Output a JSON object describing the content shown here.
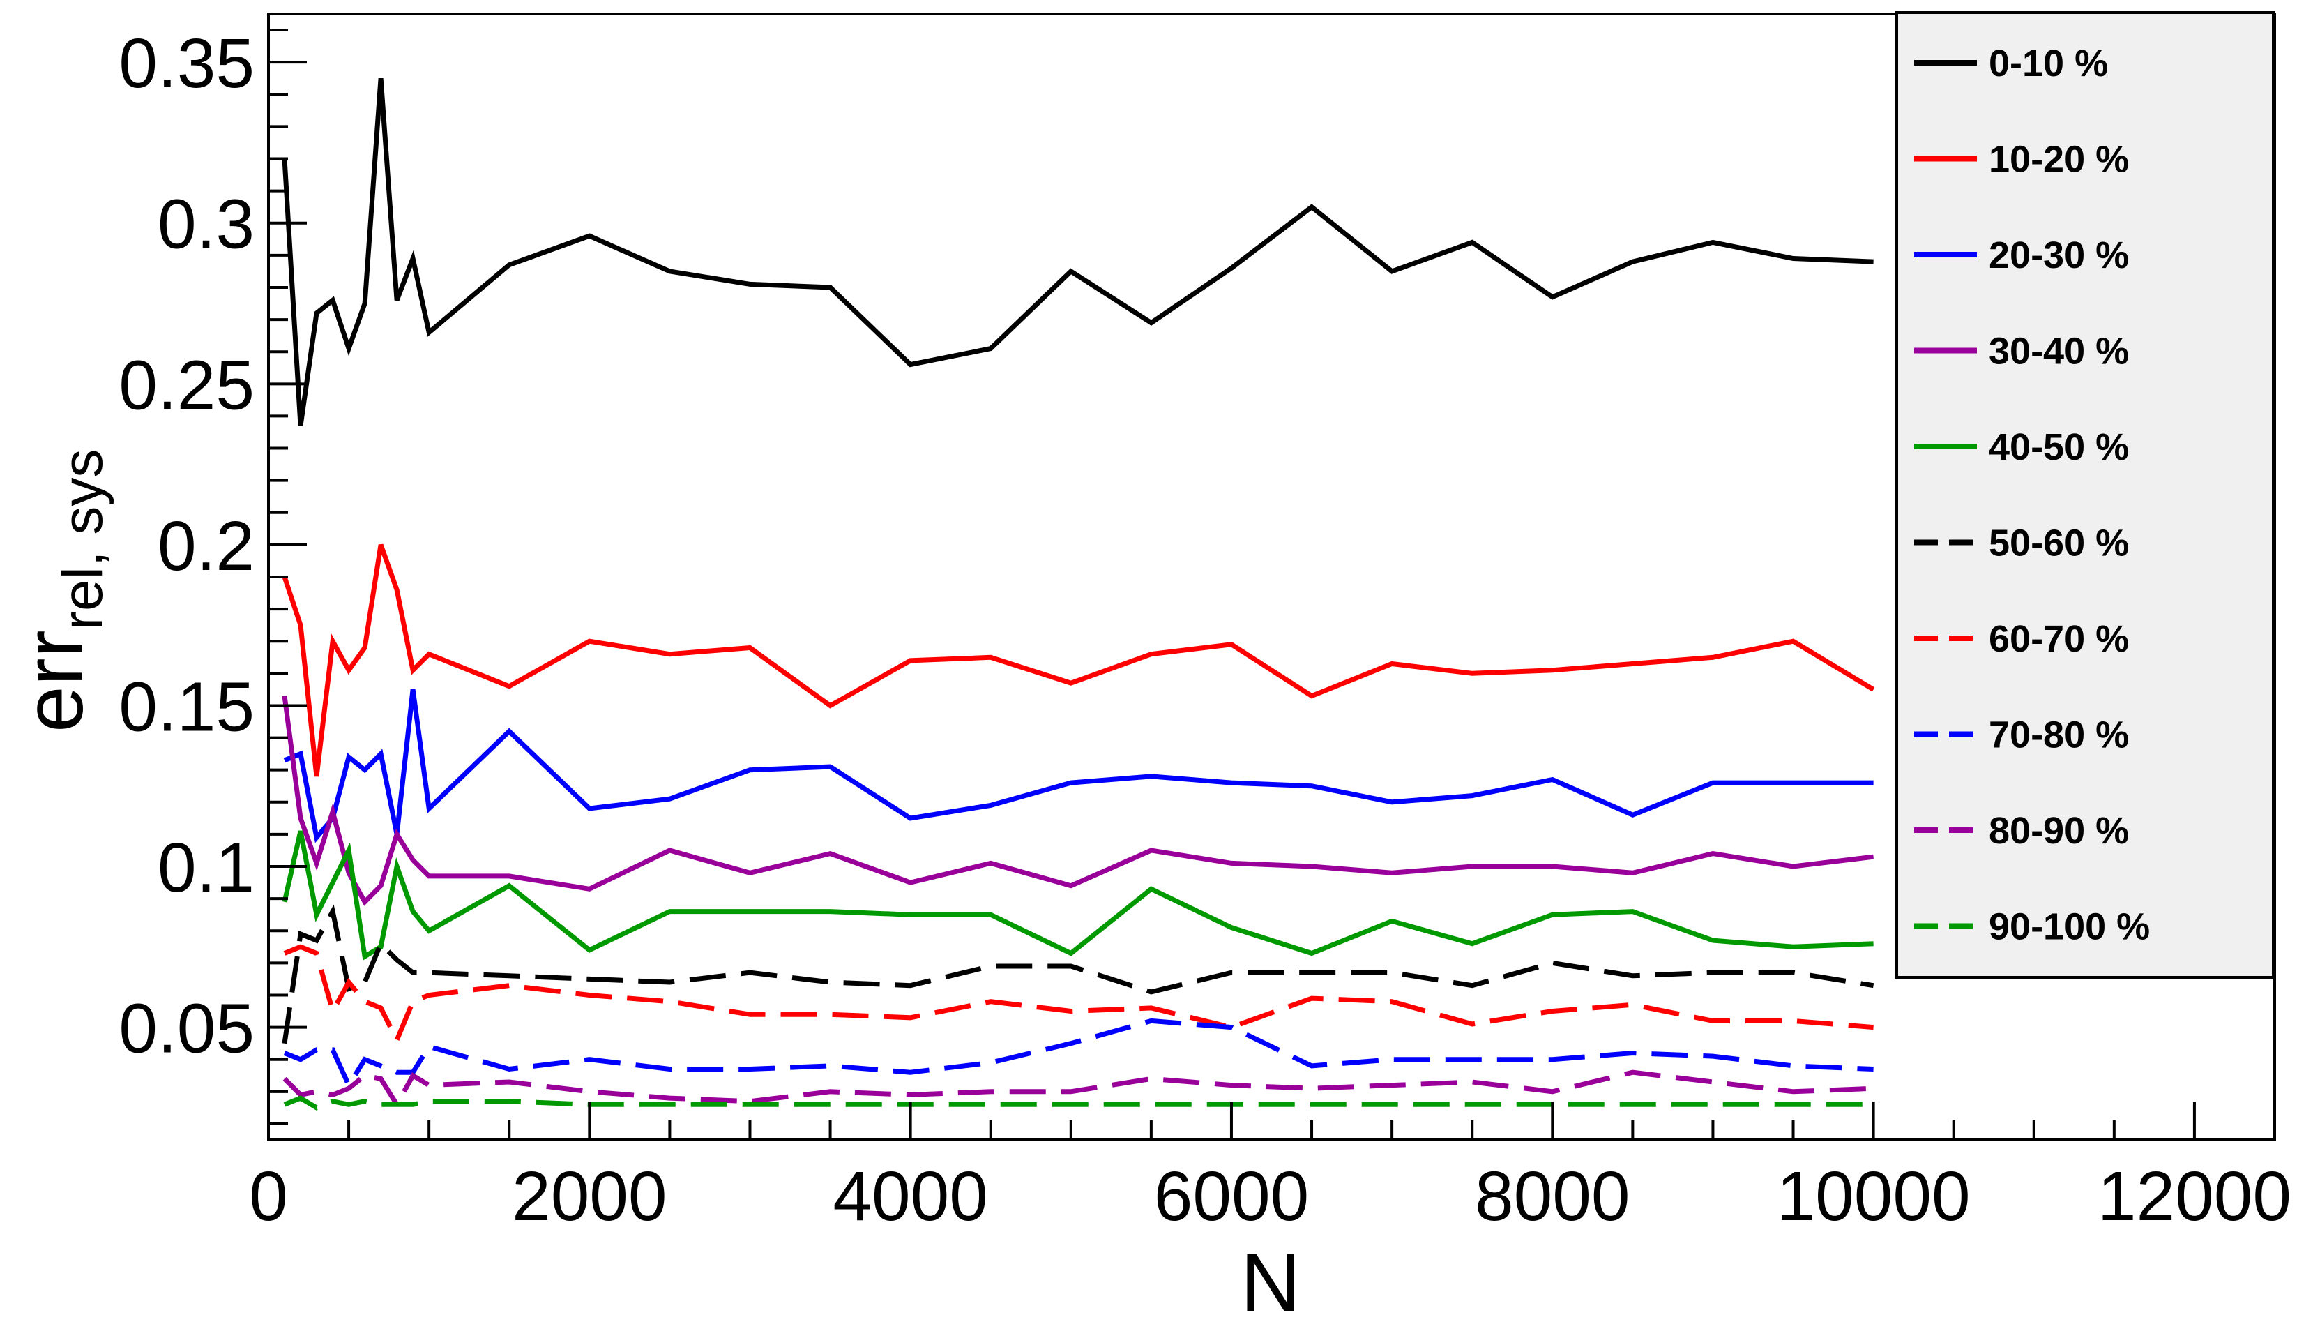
{
  "chart_data": {
    "type": "line",
    "title": "",
    "xlabel": "N",
    "ylabel": {
      "main": "err",
      "sub": "rel, sys"
    },
    "xlim": [
      0,
      12500
    ],
    "ylim": [
      0.015,
      0.365
    ],
    "x_ticks": [
      {
        "value": 0,
        "label": "0"
      },
      {
        "value": 2000,
        "label": "2000"
      },
      {
        "value": 4000,
        "label": "4000"
      },
      {
        "value": 6000,
        "label": "6000"
      },
      {
        "value": 8000,
        "label": "8000"
      },
      {
        "value": 10000,
        "label": "10000"
      },
      {
        "value": 12000,
        "label": "12000"
      }
    ],
    "y_ticks": [
      {
        "value": 0.05,
        "label": "0.05"
      },
      {
        "value": 0.1,
        "label": "0.1"
      },
      {
        "value": 0.15,
        "label": "0.15"
      },
      {
        "value": 0.2,
        "label": "0.2"
      },
      {
        "value": 0.25,
        "label": "0.25"
      },
      {
        "value": 0.3,
        "label": "0.3"
      },
      {
        "value": 0.35,
        "label": "0.35"
      }
    ],
    "grid": false,
    "legend_position": "top-right",
    "series": [
      {
        "name": "0-10 %",
        "color": "#000000",
        "dash": "solid",
        "x": [
          100,
          200,
          300,
          400,
          500,
          600,
          700,
          800,
          900,
          1000,
          1500,
          2000,
          2500,
          3000,
          3500,
          4000,
          4500,
          5000,
          5500,
          6000,
          6500,
          7000,
          7500,
          8000,
          8500,
          9000,
          9500,
          10000
        ],
        "y": [
          0.32,
          0.237,
          0.272,
          0.276,
          0.261,
          0.275,
          0.345,
          0.276,
          0.289,
          0.266,
          0.287,
          0.296,
          0.285,
          0.281,
          0.28,
          0.256,
          0.261,
          0.285,
          0.269,
          0.286,
          0.305,
          0.285,
          0.294,
          0.277,
          0.288,
          0.294,
          0.289,
          0.288
        ]
      },
      {
        "name": "10-20 %",
        "color": "#ff0000",
        "dash": "solid",
        "x": [
          100,
          200,
          300,
          400,
          500,
          600,
          700,
          800,
          900,
          1000,
          1500,
          2000,
          2500,
          3000,
          3500,
          4000,
          4500,
          5000,
          5500,
          6000,
          6500,
          7000,
          7500,
          8000,
          8500,
          9000,
          9500,
          10000
        ],
        "y": [
          0.19,
          0.175,
          0.128,
          0.17,
          0.161,
          0.168,
          0.2,
          0.186,
          0.161,
          0.166,
          0.156,
          0.17,
          0.166,
          0.168,
          0.15,
          0.164,
          0.165,
          0.157,
          0.166,
          0.169,
          0.153,
          0.163,
          0.16,
          0.161,
          0.163,
          0.165,
          0.17,
          0.155
        ]
      },
      {
        "name": "20-30 %",
        "color": "#0000ff",
        "dash": "solid",
        "x": [
          100,
          200,
          300,
          400,
          500,
          600,
          700,
          800,
          900,
          1000,
          1500,
          2000,
          2500,
          3000,
          3500,
          4000,
          4500,
          5000,
          5500,
          6000,
          6500,
          7000,
          7500,
          8000,
          8500,
          9000,
          9500,
          10000
        ],
        "y": [
          0.133,
          0.135,
          0.109,
          0.115,
          0.134,
          0.13,
          0.135,
          0.11,
          0.155,
          0.118,
          0.142,
          0.118,
          0.121,
          0.13,
          0.131,
          0.115,
          0.119,
          0.126,
          0.128,
          0.126,
          0.125,
          0.12,
          0.122,
          0.127,
          0.116,
          0.126,
          0.126,
          0.126
        ]
      },
      {
        "name": "30-40 %",
        "color": "#990099",
        "dash": "solid",
        "x": [
          100,
          200,
          300,
          400,
          500,
          600,
          700,
          800,
          900,
          1000,
          1500,
          2000,
          2500,
          3000,
          3500,
          4000,
          4500,
          5000,
          5500,
          6000,
          6500,
          7000,
          7500,
          8000,
          8500,
          9000,
          9500,
          10000
        ],
        "y": [
          0.153,
          0.115,
          0.101,
          0.117,
          0.098,
          0.089,
          0.094,
          0.11,
          0.102,
          0.097,
          0.097,
          0.093,
          0.105,
          0.098,
          0.104,
          0.095,
          0.101,
          0.094,
          0.105,
          0.101,
          0.1,
          0.098,
          0.1,
          0.1,
          0.098,
          0.104,
          0.1,
          0.103
        ]
      },
      {
        "name": "40-50 %",
        "color": "#009900",
        "dash": "solid",
        "x": [
          100,
          200,
          300,
          400,
          500,
          600,
          700,
          800,
          900,
          1000,
          1500,
          2000,
          2500,
          3000,
          3500,
          4000,
          4500,
          5000,
          5500,
          6000,
          6500,
          7000,
          7500,
          8000,
          8500,
          9000,
          9500,
          10000
        ],
        "y": [
          0.089,
          0.111,
          0.085,
          0.095,
          0.105,
          0.072,
          0.075,
          0.1,
          0.086,
          0.08,
          0.094,
          0.074,
          0.086,
          0.086,
          0.086,
          0.085,
          0.085,
          0.073,
          0.093,
          0.081,
          0.073,
          0.083,
          0.076,
          0.085,
          0.086,
          0.077,
          0.075,
          0.076
        ]
      },
      {
        "name": "50-60 %",
        "color": "#000000",
        "dash": "long",
        "x": [
          100,
          200,
          300,
          400,
          500,
          600,
          700,
          800,
          900,
          1000,
          1500,
          2000,
          2500,
          3000,
          3500,
          4000,
          4500,
          5000,
          5500,
          6000,
          6500,
          7000,
          7500,
          8000,
          8500,
          9000,
          9500,
          10000
        ],
        "y": [
          0.045,
          0.079,
          0.077,
          0.086,
          0.062,
          0.064,
          0.076,
          0.071,
          0.067,
          0.067,
          0.066,
          0.065,
          0.064,
          0.067,
          0.064,
          0.063,
          0.069,
          0.069,
          0.061,
          0.067,
          0.067,
          0.067,
          0.063,
          0.07,
          0.066,
          0.067,
          0.067,
          0.063
        ]
      },
      {
        "name": "60-70 %",
        "color": "#ff0000",
        "dash": "long",
        "x": [
          100,
          200,
          300,
          400,
          500,
          600,
          700,
          800,
          900,
          1000,
          1500,
          2000,
          2500,
          3000,
          3500,
          4000,
          4500,
          5000,
          5500,
          6000,
          6500,
          7000,
          7500,
          8000,
          8500,
          9000,
          9500,
          10000
        ],
        "y": [
          0.073,
          0.075,
          0.073,
          0.055,
          0.064,
          0.058,
          0.056,
          0.046,
          0.058,
          0.06,
          0.063,
          0.06,
          0.058,
          0.054,
          0.054,
          0.053,
          0.058,
          0.055,
          0.056,
          0.05,
          0.059,
          0.058,
          0.051,
          0.055,
          0.057,
          0.052,
          0.052,
          0.05
        ]
      },
      {
        "name": "70-80 %",
        "color": "#0000ff",
        "dash": "long",
        "x": [
          100,
          200,
          300,
          400,
          500,
          600,
          700,
          800,
          900,
          1000,
          1500,
          2000,
          2500,
          3000,
          3500,
          4000,
          4500,
          5000,
          5500,
          6000,
          6500,
          7000,
          7500,
          8000,
          8500,
          9000,
          9500,
          10000
        ],
        "y": [
          0.042,
          0.04,
          0.043,
          0.043,
          0.032,
          0.04,
          0.038,
          0.036,
          0.036,
          0.044,
          0.037,
          0.04,
          0.037,
          0.037,
          0.038,
          0.036,
          0.039,
          0.045,
          0.052,
          0.05,
          0.038,
          0.04,
          0.04,
          0.04,
          0.042,
          0.041,
          0.038,
          0.037
        ]
      },
      {
        "name": "80-90 %",
        "color": "#990099",
        "dash": "long",
        "x": [
          100,
          200,
          300,
          400,
          500,
          600,
          700,
          800,
          900,
          1000,
          1500,
          2000,
          2500,
          3000,
          3500,
          4000,
          4500,
          5000,
          5500,
          6000,
          6500,
          7000,
          7500,
          8000,
          8500,
          9000,
          9500,
          10000
        ],
        "y": [
          0.034,
          0.029,
          0.03,
          0.029,
          0.031,
          0.035,
          0.034,
          0.026,
          0.035,
          0.032,
          0.033,
          0.03,
          0.028,
          0.027,
          0.03,
          0.029,
          0.03,
          0.03,
          0.034,
          0.032,
          0.031,
          0.032,
          0.033,
          0.03,
          0.036,
          0.033,
          0.03,
          0.031
        ]
      },
      {
        "name": "90-100 %",
        "color": "#009900",
        "dash": "long",
        "x": [
          100,
          200,
          300,
          400,
          500,
          600,
          700,
          800,
          900,
          1000,
          1500,
          2000,
          2500,
          3000,
          3500,
          4000,
          4500,
          5000,
          5500,
          6000,
          6500,
          7000,
          7500,
          8000,
          8500,
          9000,
          9500,
          10000
        ],
        "y": [
          0.026,
          0.028,
          0.025,
          0.027,
          0.026,
          0.027,
          0.026,
          0.026,
          0.026,
          0.027,
          0.027,
          0.026,
          0.026,
          0.026,
          0.026,
          0.026,
          0.026,
          0.026,
          0.026,
          0.026,
          0.026,
          0.026,
          0.026,
          0.026,
          0.026,
          0.026,
          0.026,
          0.026
        ]
      }
    ]
  }
}
